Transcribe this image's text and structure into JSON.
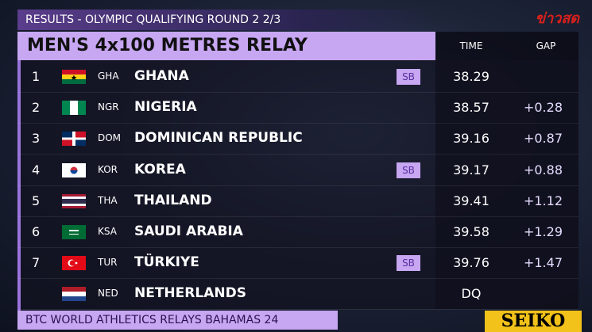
{
  "header": {
    "title": "RESULTS - OLYMPIC QUALIFYING ROUND 2  2/3",
    "watermark": "ข่าวสด"
  },
  "event": {
    "title": "MEN'S 4x100 METRES RELAY",
    "columns": [
      "TIME",
      "GAP"
    ]
  },
  "table": {
    "rows": [
      {
        "rank": "1",
        "code": "GHA",
        "name": "GHANA",
        "note": "SB",
        "time": "38.29"
      },
      {
        "rank": "2",
        "code": "NGR",
        "name": "NIGERIA",
        "time": "38.57",
        "gap": "+0.28"
      },
      {
        "rank": "3",
        "code": "DOM",
        "name": "DOMINICAN REPUBLIC",
        "time": "39.16",
        "gap": "+0.87"
      },
      {
        "rank": "4",
        "code": "KOR",
        "name": "KOREA",
        "note": "SB",
        "time": "39.17",
        "gap": "+0.88"
      },
      {
        "rank": "5",
        "code": "THA",
        "name": "THAILAND",
        "time": "39.41",
        "gap": "+1.12"
      },
      {
        "rank": "6",
        "code": "KSA",
        "name": "SAUDI ARABIA",
        "time": "39.58",
        "gap": "+1.29"
      },
      {
        "rank": "7",
        "code": "TUR",
        "name": "TÜRKIYE",
        "note": "SB",
        "time": "39.76",
        "gap": "+1.47"
      },
      {
        "code": "NED",
        "name": "NETHERLANDS",
        "time": "DQ"
      }
    ]
  },
  "footer": {
    "title": "BTC WORLD ATHLETICS RELAYS BAHAMAS 24",
    "sponsor": "SEIKO"
  }
}
